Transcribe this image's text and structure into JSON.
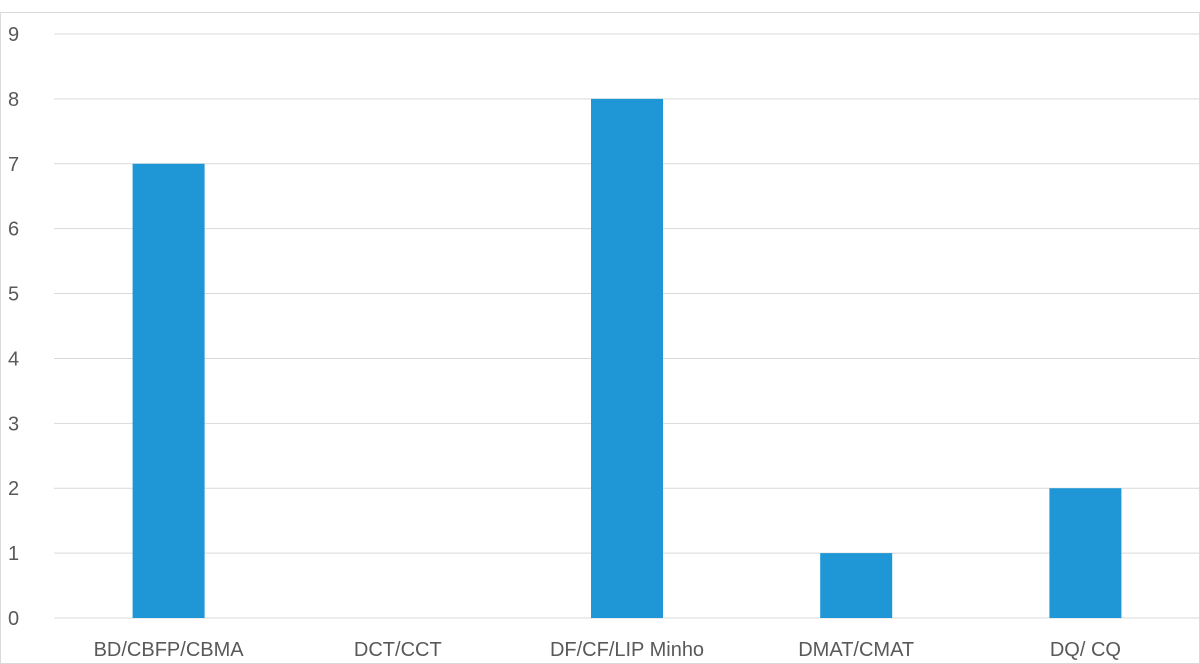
{
  "chart_data": {
    "type": "bar",
    "categories": [
      "BD/CBFP/CBMA",
      "DCT/CCT",
      "DF/CF/LIP Minho",
      "DMAT/CMAT",
      "DQ/ CQ"
    ],
    "values": [
      7,
      0,
      8,
      1,
      2
    ],
    "title": "",
    "xlabel": "",
    "ylabel": "",
    "ylim": [
      0,
      9
    ],
    "yticks": [
      0,
      1,
      2,
      3,
      4,
      5,
      6,
      7,
      8,
      9
    ],
    "grid": true,
    "legend": "none",
    "bar_color": "#1f97d6"
  }
}
